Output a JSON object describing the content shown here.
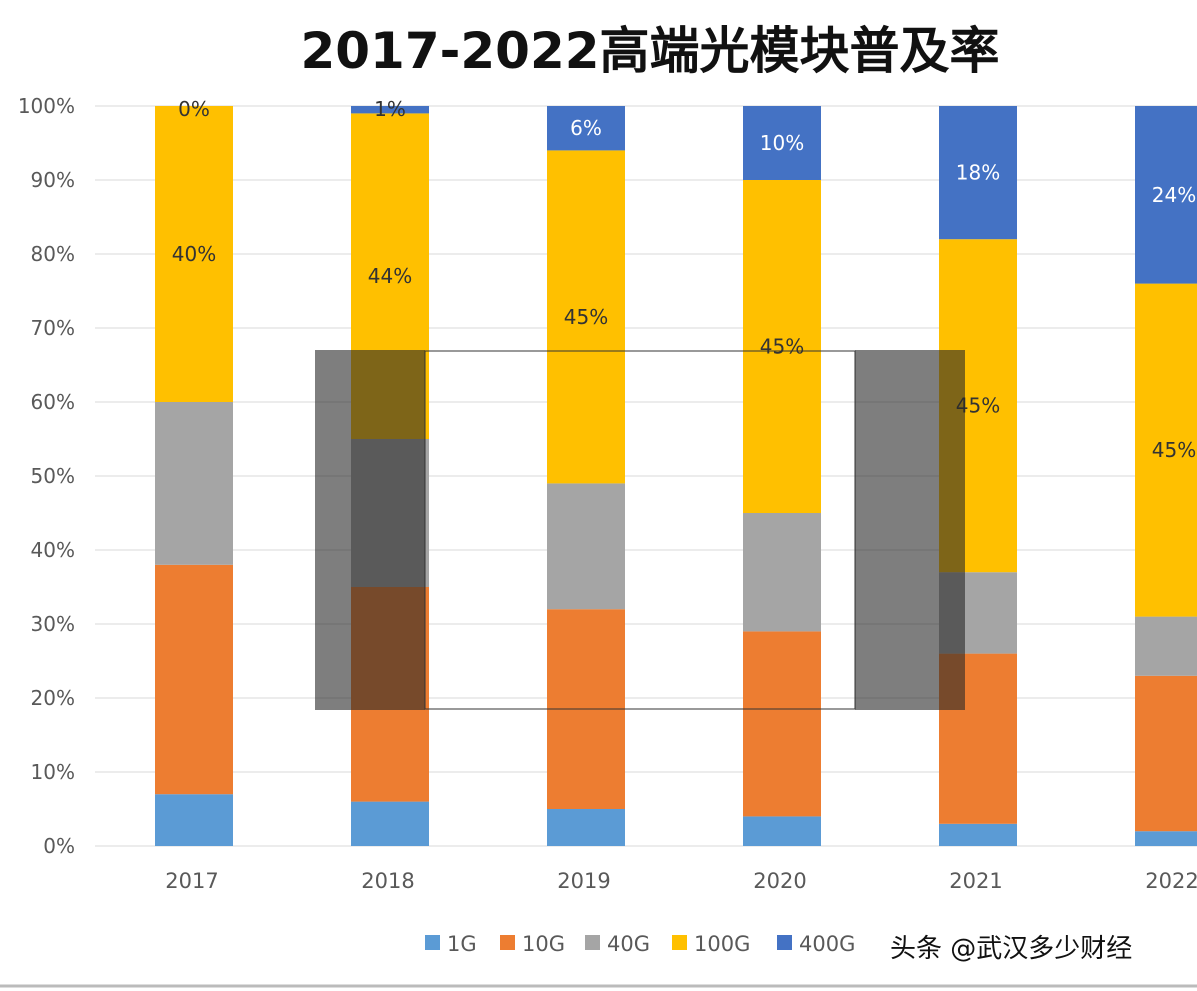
{
  "chart_data": {
    "type": "bar",
    "stacked": true,
    "title": "2017-2022高端光模块普及率",
    "xlabel": "",
    "ylabel": "",
    "ylim": [
      0,
      100
    ],
    "yticks": [
      "0%",
      "10%",
      "20%",
      "30%",
      "40%",
      "50%",
      "60%",
      "70%",
      "80%",
      "90%",
      "100%"
    ],
    "categories": [
      "2017",
      "2018",
      "2019",
      "2020",
      "2021",
      "2022"
    ],
    "series": [
      {
        "name": "1G",
        "color": "#5B9BD5",
        "values": [
          7,
          6,
          5,
          4,
          3,
          2
        ],
        "labeled": false
      },
      {
        "name": "10G",
        "color": "#ED7D31",
        "values": [
          31,
          29,
          27,
          25,
          23,
          21
        ],
        "labeled": false
      },
      {
        "name": "40G",
        "color": "#A5A5A5",
        "values": [
          22,
          20,
          17,
          16,
          11,
          8
        ],
        "labeled": false
      },
      {
        "name": "100G",
        "color": "#FFC000",
        "values": [
          40,
          44,
          45,
          45,
          45,
          45
        ],
        "labeled": true,
        "labels": [
          "40%",
          "44%",
          "45%",
          "45%",
          "45%",
          "45%"
        ]
      },
      {
        "name": "400G",
        "color": "#4472C4",
        "values": [
          0,
          1,
          6,
          10,
          18,
          24
        ],
        "labeled": true,
        "labels": [
          "0%",
          "1%",
          "6%",
          "10%",
          "18%",
          "24%"
        ]
      }
    ],
    "grid": true,
    "legend": "bottom"
  },
  "watermark": "头条 @武汉多少财经"
}
